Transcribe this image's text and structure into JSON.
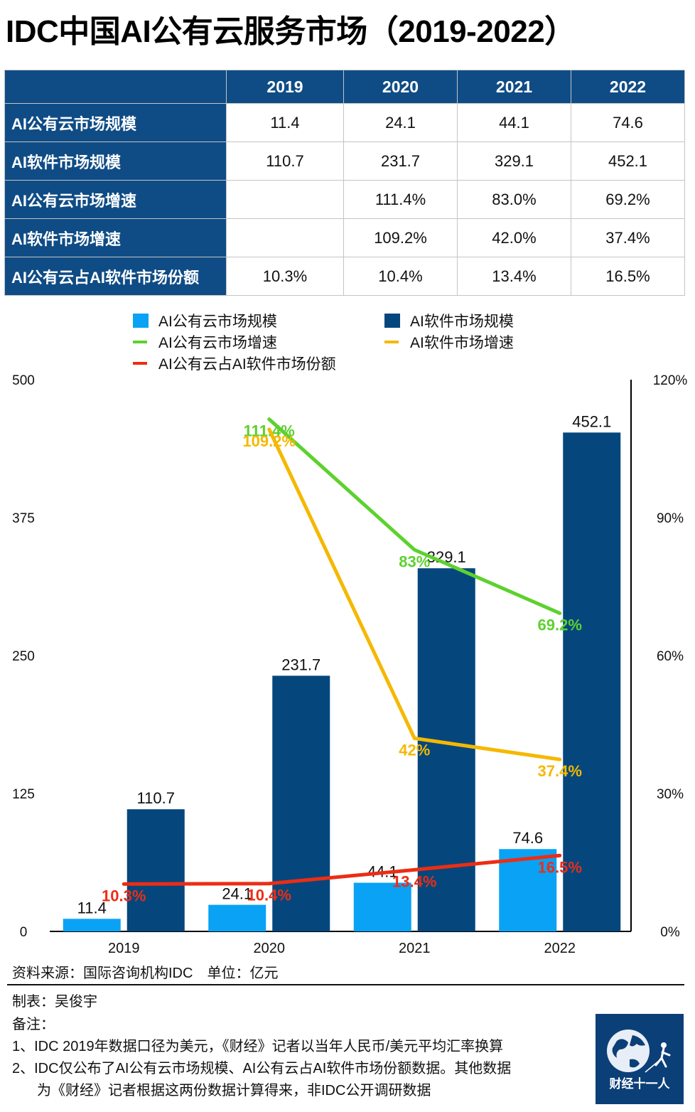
{
  "title": "IDC中国AI公有云服务市场（2019-2022）",
  "table": {
    "corner": "",
    "years": [
      "2019",
      "2020",
      "2021",
      "2022"
    ],
    "rows": [
      {
        "label": "AI公有云市场规模",
        "values": [
          "11.4",
          "24.1",
          "44.1",
          "74.6"
        ]
      },
      {
        "label": "AI软件市场规模",
        "values": [
          "110.7",
          "231.7",
          "329.1",
          "452.1"
        ]
      },
      {
        "label": "AI公有云市场增速",
        "values": [
          "",
          "111.4%",
          "83.0%",
          "69.2%"
        ]
      },
      {
        "label": "AI软件市场增速",
        "values": [
          "",
          "109.2%",
          "42.0%",
          "37.4%"
        ]
      },
      {
        "label": "AI公有云占AI软件市场份额",
        "values": [
          "10.3%",
          "10.4%",
          "13.4%",
          "16.5%"
        ]
      }
    ]
  },
  "legend": {
    "cloud_size": "AI公有云市场规模",
    "software_size": "AI软件市场规模",
    "cloud_growth": "AI公有云市场增速",
    "software_growth": "AI软件市场增速",
    "share": "AI公有云占AI软件市场份额"
  },
  "colors": {
    "header_bg": "#0f4c85",
    "cloud_bar": "#0aa2f5",
    "software_bar": "#05477d",
    "cloud_growth": "#5dd12e",
    "software_growth": "#f5b800",
    "share": "#ec2d14"
  },
  "chart_data": {
    "type": "bar+line",
    "categories": [
      "2019",
      "2020",
      "2021",
      "2022"
    ],
    "bar_series": [
      {
        "name": "AI公有云市场规模",
        "key": "cloud_bar",
        "values": [
          11.4,
          24.1,
          44.1,
          74.6
        ],
        "labels": [
          "11.4",
          "24.1",
          "44.1",
          "74.6"
        ]
      },
      {
        "name": "AI软件市场规模",
        "key": "software_bar",
        "values": [
          110.7,
          231.7,
          329.1,
          452.1
        ],
        "labels": [
          "110.7",
          "231.7",
          "329.1",
          "452.1"
        ]
      }
    ],
    "line_series": [
      {
        "name": "AI公有云市场增速",
        "key": "cloud_growth",
        "values": [
          null,
          111.4,
          83.0,
          69.2
        ],
        "labels": [
          "",
          "111.4%",
          "83%",
          "69.2%"
        ]
      },
      {
        "name": "AI软件市场增速",
        "key": "software_growth",
        "values": [
          null,
          109.2,
          42.0,
          37.4
        ],
        "labels": [
          "",
          "109.2%",
          "42%",
          "37.4%"
        ]
      },
      {
        "name": "AI公有云占AI软件市场份额",
        "key": "share",
        "values": [
          10.3,
          10.4,
          13.4,
          16.5
        ],
        "labels": [
          "10.3%",
          "10.4%",
          "13.4%",
          "16.5%"
        ]
      }
    ],
    "y_left": {
      "min": 0,
      "max": 500,
      "ticks": [
        0,
        125,
        250,
        375,
        500
      ],
      "tick_labels": [
        "0",
        "125",
        "250",
        "375",
        "500"
      ]
    },
    "y_right": {
      "min": 0,
      "max": 120,
      "ticks": [
        0,
        30,
        60,
        90,
        120
      ],
      "tick_labels": [
        "0%",
        "30%",
        "60%",
        "90%",
        "120%"
      ]
    },
    "grid": false
  },
  "footer": {
    "source": "资料来源：国际咨询机构IDC　单位：亿元",
    "author": "制表：吴俊宇",
    "notes_title": "备注：",
    "note1": "1、IDC 2019年数据口径为美元，《财经》记者以当年人民币/美元平均汇率换算",
    "note2a": "2、IDC仅公布了AI公有云市场规模、AI公有云占AI软件市场份额数据。其他数据",
    "note2b": "为《财经》记者根据这两份数据计算得来，非IDC公开调研数据"
  },
  "logo": {
    "text": "财经十一人"
  }
}
